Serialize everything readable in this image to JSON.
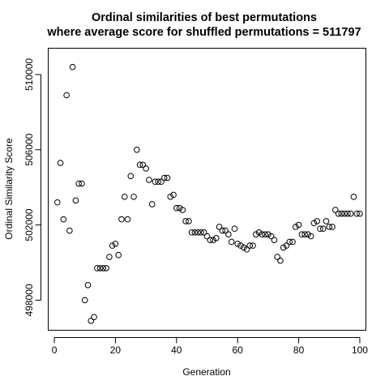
{
  "chart_data": {
    "type": "scatter",
    "title": "Ordinal similarities of best permutations",
    "subtitle": "where average score for shuffled permutations = 511797",
    "xlabel": "Generation",
    "ylabel": "Ordinal Similarity Score",
    "xlim": [
      -2,
      102
    ],
    "ylim": [
      496400,
      511400
    ],
    "xticks": [
      0,
      20,
      40,
      60,
      80,
      100
    ],
    "xtick_labels": [
      "0",
      "20",
      "40",
      "60",
      "80",
      "100"
    ],
    "yticks": [
      498000,
      502000,
      506000,
      510000
    ],
    "ytick_labels": [
      "498000",
      "502000",
      "506000",
      "510000"
    ],
    "grid": false,
    "marker": "open-circle",
    "series": [
      {
        "x": [
          1,
          2,
          3,
          4,
          5,
          6,
          7,
          8,
          9,
          10,
          11,
          12,
          13,
          14,
          15,
          16,
          17,
          18,
          19,
          20,
          21,
          22,
          23,
          24,
          25,
          26,
          27,
          28,
          29,
          30,
          31,
          32,
          33,
          34,
          35,
          36,
          37,
          38,
          39,
          40,
          41,
          42,
          43,
          44,
          45,
          46,
          47,
          48,
          49,
          50,
          51,
          52,
          53,
          54,
          55,
          56,
          57,
          58,
          59,
          60,
          61,
          62,
          63,
          64,
          65,
          66,
          67,
          68,
          69,
          70,
          71,
          72,
          73,
          74,
          75,
          76,
          77,
          78,
          79,
          80,
          81,
          82,
          83,
          84,
          85,
          86,
          87,
          88,
          89,
          90,
          91,
          92,
          93,
          94,
          95,
          96,
          97,
          98,
          99,
          100
        ],
        "y": [
          503200,
          505300,
          502300,
          508900,
          501700,
          510400,
          503300,
          504200,
          504200,
          498000,
          498800,
          496900,
          497100,
          499700,
          499700,
          499700,
          499700,
          500300,
          500900,
          501000,
          500400,
          502300,
          503500,
          502300,
          504600,
          503500,
          506000,
          505200,
          505200,
          505000,
          504400,
          503100,
          504300,
          504300,
          504300,
          504500,
          504500,
          503500,
          503600,
          502900,
          502900,
          502800,
          502200,
          502200,
          501600,
          501600,
          501600,
          501600,
          501600,
          501400,
          501200,
          501200,
          501300,
          501900,
          501700,
          501700,
          501500,
          501100,
          501800,
          501000,
          500900,
          500800,
          500700,
          500900,
          500900,
          501500,
          501600,
          501500,
          501500,
          501500,
          501400,
          501200,
          500300,
          500100,
          500800,
          500900,
          501100,
          501100,
          501900,
          502000,
          501500,
          501500,
          501500,
          501400,
          502100,
          502200,
          501800,
          501800,
          502200,
          501900,
          501900,
          502800,
          502600,
          502600,
          502600,
          502600,
          502600,
          503500,
          502600,
          502600
        ]
      }
    ]
  }
}
